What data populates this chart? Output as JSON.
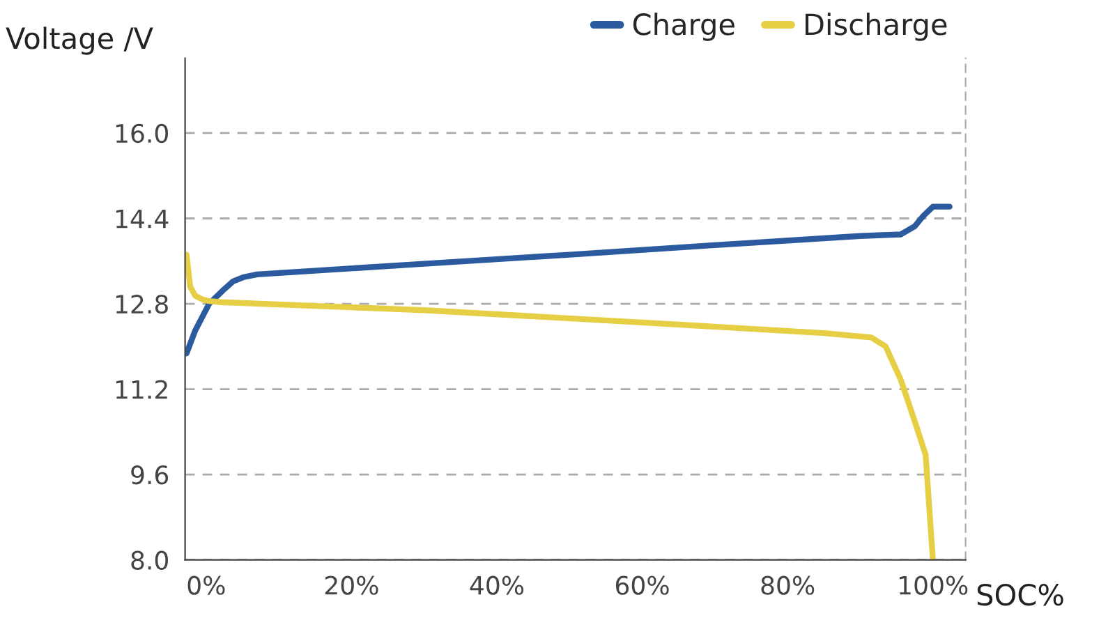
{
  "chart_data": {
    "type": "line",
    "xlabel": "SOC%",
    "ylabel": "Voltage /V",
    "xlim": [
      -2.9,
      104.5
    ],
    "ylim": [
      8.0,
      17.4
    ],
    "xticks": [
      {
        "value": 0,
        "label": "0%"
      },
      {
        "value": 20,
        "label": "20%"
      },
      {
        "value": 40,
        "label": "40%"
      },
      {
        "value": 60,
        "label": "60%"
      },
      {
        "value": 80,
        "label": "80%"
      },
      {
        "value": 100,
        "label": "100%"
      }
    ],
    "yticks": [
      {
        "value": 8.0,
        "label": "8.0"
      },
      {
        "value": 9.6,
        "label": "9.6"
      },
      {
        "value": 11.2,
        "label": "11.2"
      },
      {
        "value": 12.8,
        "label": "12.8"
      },
      {
        "value": 14.4,
        "label": "14.4"
      },
      {
        "value": 16.0,
        "label": "16.0"
      }
    ],
    "grid": "y",
    "legend": "top right",
    "marker": "none",
    "line_style": "solid",
    "series": [
      {
        "name": "Charge",
        "color": "#2b5a9e",
        "x": [
          -2.7,
          -1.5,
          0.4,
          2.3,
          3.7,
          5.2,
          7.0,
          30,
          50,
          70,
          90,
          95.6,
          97.5,
          98.7,
          100,
          102.3
        ],
        "values": [
          11.87,
          12.3,
          12.8,
          13.05,
          13.22,
          13.3,
          13.35,
          13.55,
          13.72,
          13.9,
          14.07,
          14.1,
          14.25,
          14.45,
          14.62,
          14.62
        ]
      },
      {
        "name": "Discharge",
        "color": "#e6cf45",
        "x": [
          -2.7,
          -2.2,
          -1.5,
          -0.5,
          0.4,
          2.0,
          30,
          60,
          85,
          91.5,
          93.5,
          95.6,
          97.5,
          99.0,
          100
        ],
        "values": [
          13.72,
          13.12,
          12.95,
          12.88,
          12.85,
          12.83,
          12.68,
          12.45,
          12.25,
          12.17,
          12.0,
          11.37,
          10.6,
          9.97,
          8.0
        ]
      }
    ]
  }
}
